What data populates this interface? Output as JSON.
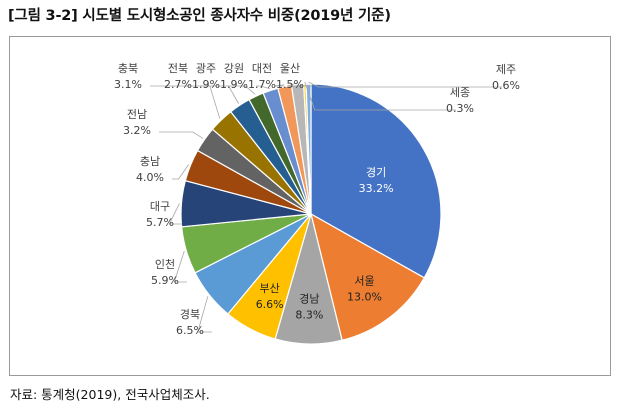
{
  "header": {
    "title": "[그림 3-2] 시도별 도시형소공인 종사자수 비중(2019년 기준)"
  },
  "footer": {
    "source": "자료: 통계청(2019), 전국사업체조사."
  },
  "chart_data": {
    "type": "pie",
    "title": "",
    "slices": [
      {
        "name": "경기",
        "value": 33.2,
        "label": "33.2%",
        "color": "#4472C4"
      },
      {
        "name": "서울",
        "value": 13.0,
        "label": "13.0%",
        "color": "#ED7D31"
      },
      {
        "name": "경남",
        "value": 8.3,
        "label": "8.3%",
        "color": "#A5A5A5"
      },
      {
        "name": "부산",
        "value": 6.6,
        "label": "6.6%",
        "color": "#FFC000"
      },
      {
        "name": "경북",
        "value": 6.5,
        "label": "6.5%",
        "color": "#5B9BD5"
      },
      {
        "name": "인천",
        "value": 5.9,
        "label": "5.9%",
        "color": "#70AD47"
      },
      {
        "name": "대구",
        "value": 5.7,
        "label": "5.7%",
        "color": "#264478"
      },
      {
        "name": "충남",
        "value": 4.0,
        "label": "4.0%",
        "color": "#9E480E"
      },
      {
        "name": "전남",
        "value": 3.2,
        "label": "3.2%",
        "color": "#636363"
      },
      {
        "name": "충북",
        "value": 3.1,
        "label": "3.1%",
        "color": "#997300"
      },
      {
        "name": "전북",
        "value": 2.7,
        "label": "2.7%",
        "color": "#255E91"
      },
      {
        "name": "광주",
        "value": 1.9,
        "label": "1.9%",
        "color": "#43682B"
      },
      {
        "name": "강원",
        "value": 1.9,
        "label": "1.9%",
        "color": "#698ED0"
      },
      {
        "name": "대전",
        "value": 1.7,
        "label": "1.7%",
        "color": "#F1975A"
      },
      {
        "name": "울산",
        "value": 1.5,
        "label": "1.5%",
        "color": "#B7B7B7"
      },
      {
        "name": "세종",
        "value": 0.3,
        "label": "0.3%",
        "color": "#FFCD33"
      },
      {
        "name": "제주",
        "value": 0.6,
        "label": "0.6%",
        "color": "#7CAFDD"
      }
    ]
  }
}
